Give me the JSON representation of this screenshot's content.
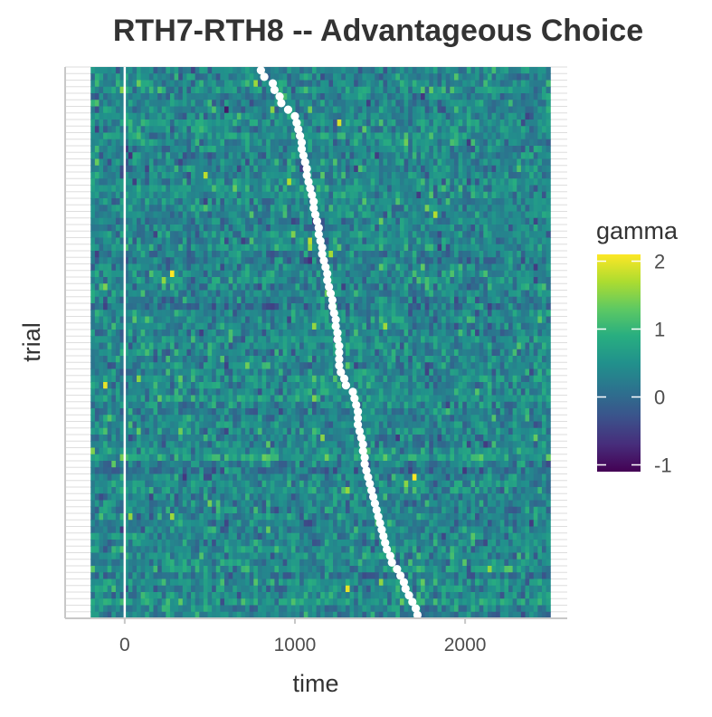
{
  "chart_data": {
    "type": "heatmap",
    "title": "RTH7-RTH8 -- Advantageous Choice",
    "xlabel": "time",
    "ylabel": "trial",
    "xlim": [
      -350,
      2600
    ],
    "x_range": [
      -200,
      2500
    ],
    "x_ticks": [
      0,
      1000,
      2000
    ],
    "x_tick_labels": [
      "0",
      "1000",
      "2000"
    ],
    "y_tick_labels_shown": false,
    "n_trials": 84,
    "n_time_bins": 110,
    "vline_x": 0,
    "legend": {
      "title": "gamma",
      "position": "right",
      "range": [
        -1.1,
        2.1
      ],
      "ticks": [
        -1,
        0,
        1,
        2
      ],
      "tick_labels": [
        "-1",
        "0",
        "1",
        "2"
      ],
      "colormap": "viridis"
    },
    "colors": {
      "background": "#ffffff",
      "grid": "#dedede",
      "axis": "#c8c8c8",
      "marker": "#ffffff",
      "title": "#333333",
      "axis_label": "#333333",
      "tick_label": "#4d4d4d"
    },
    "response_times": [
      800,
      820,
      870,
      880,
      910,
      920,
      960,
      1000,
      1010,
      1020,
      1030,
      1040,
      1040,
      1050,
      1060,
      1070,
      1070,
      1080,
      1090,
      1100,
      1110,
      1110,
      1120,
      1130,
      1140,
      1140,
      1150,
      1160,
      1160,
      1170,
      1180,
      1190,
      1190,
      1200,
      1210,
      1220,
      1220,
      1230,
      1240,
      1240,
      1250,
      1250,
      1260,
      1260,
      1260,
      1260,
      1270,
      1290,
      1300,
      1340,
      1350,
      1360,
      1370,
      1370,
      1370,
      1380,
      1390,
      1400,
      1400,
      1410,
      1410,
      1420,
      1430,
      1440,
      1450,
      1460,
      1470,
      1480,
      1490,
      1500,
      1510,
      1520,
      1530,
      1540,
      1560,
      1570,
      1600,
      1620,
      1640,
      1650,
      1670,
      1690,
      1710,
      1720
    ]
  }
}
